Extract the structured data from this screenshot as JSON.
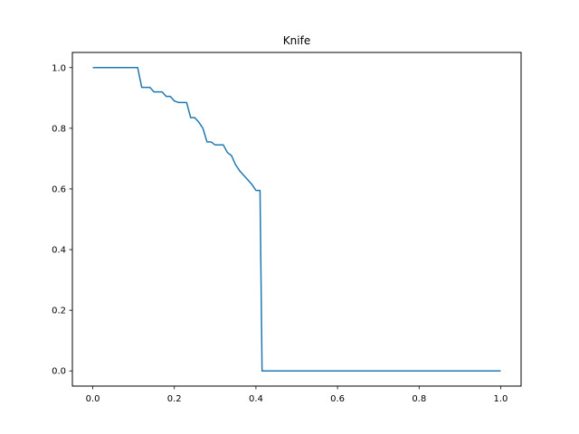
{
  "chart_data": {
    "type": "line",
    "title": "Knife",
    "xlabel": "",
    "ylabel": "",
    "xlim": [
      -0.05,
      1.05
    ],
    "ylim": [
      -0.05,
      1.05
    ],
    "xticks": [
      "0.0",
      "0.2",
      "0.4",
      "0.6",
      "0.8",
      "1.0"
    ],
    "yticks": [
      "0.0",
      "0.2",
      "0.4",
      "0.6",
      "0.8",
      "1.0"
    ],
    "grid": false,
    "colors": {
      "line": "#1f77b4"
    },
    "series": [
      {
        "x": [
          0.0,
          0.11,
          0.12,
          0.14,
          0.15,
          0.17,
          0.18,
          0.19,
          0.2,
          0.21,
          0.23,
          0.24,
          0.25,
          0.26,
          0.27,
          0.28,
          0.29,
          0.3,
          0.32,
          0.33,
          0.34,
          0.35,
          0.36,
          0.37,
          0.38,
          0.39,
          0.4,
          0.41,
          0.415,
          1.0
        ],
        "values": [
          1.0,
          1.0,
          0.935,
          0.935,
          0.92,
          0.92,
          0.905,
          0.905,
          0.89,
          0.885,
          0.885,
          0.835,
          0.835,
          0.82,
          0.8,
          0.755,
          0.755,
          0.745,
          0.745,
          0.72,
          0.71,
          0.68,
          0.66,
          0.645,
          0.63,
          0.615,
          0.595,
          0.595,
          0.0,
          0.0
        ]
      }
    ]
  }
}
